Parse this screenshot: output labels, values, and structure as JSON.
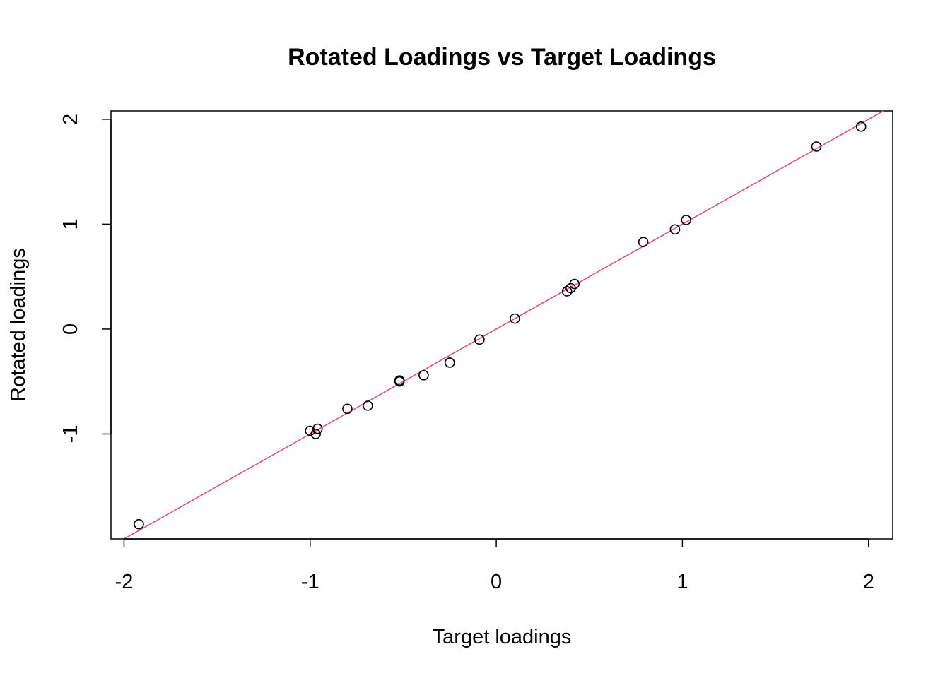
{
  "chart_data": {
    "type": "scatter",
    "title": "Rotated Loadings vs Target Loadings",
    "xlabel": "Target loadings",
    "ylabel": "Rotated loadings",
    "xlim": [
      -2.07,
      2.13
    ],
    "ylim": [
      -2.0,
      2.08
    ],
    "xticks": [
      -2,
      -1,
      0,
      1,
      2
    ],
    "yticks": [
      -1,
      0,
      1,
      2
    ],
    "xtick_labels": [
      "-2",
      "-1",
      "0",
      "1",
      "2"
    ],
    "ytick_labels": [
      "-1",
      "0",
      "1",
      "2"
    ],
    "grid": false,
    "legend": "none",
    "points": {
      "x": [
        -1.92,
        -1.0,
        -0.96,
        -0.97,
        -0.8,
        -0.69,
        -0.52,
        -0.52,
        -0.39,
        -0.25,
        -0.09,
        0.1,
        0.38,
        0.4,
        0.42,
        0.79,
        0.96,
        1.02,
        1.72,
        1.96
      ],
      "y": [
        -1.86,
        -0.97,
        -0.95,
        -1.0,
        -0.76,
        -0.73,
        -0.5,
        -0.49,
        -0.44,
        -0.32,
        -0.1,
        0.1,
        0.36,
        0.39,
        0.43,
        0.83,
        0.95,
        1.04,
        1.74,
        1.93
      ]
    },
    "reference_line": {
      "intercept": 0,
      "slope": 1,
      "color": "#DF536B"
    },
    "point_color": "#000000"
  }
}
